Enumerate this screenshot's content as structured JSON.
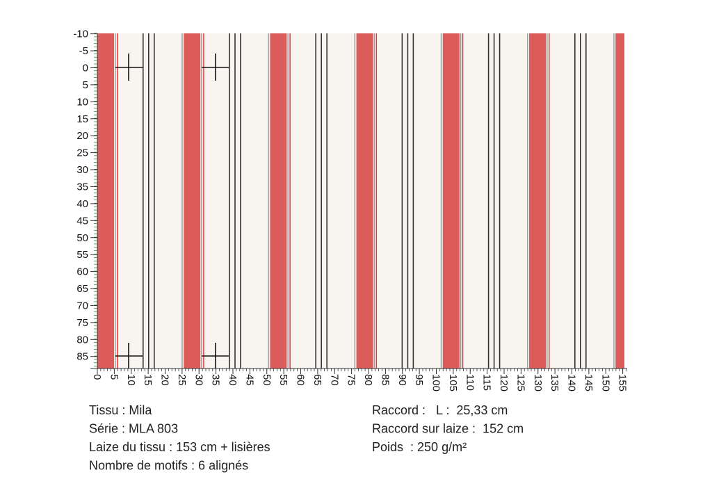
{
  "vertical_ruler": {
    "labels": [
      -10,
      -5,
      0,
      5,
      10,
      15,
      20,
      25,
      30,
      35,
      40,
      45,
      50,
      55,
      60,
      65,
      70,
      75,
      80,
      85
    ]
  },
  "horizontal_ruler": {
    "labels": [
      0,
      5,
      10,
      15,
      20,
      25,
      30,
      35,
      40,
      45,
      50,
      55,
      60,
      65,
      70,
      75,
      80,
      85,
      90,
      95,
      100,
      105,
      110,
      115,
      120,
      125,
      130,
      135,
      140,
      145,
      150,
      155
    ]
  },
  "info_left": [
    "Tissu : Mila",
    "Série : MLA 803",
    "Laize du tissu : 153 cm + lisières",
    "Nombre de motifs : 6 alignés"
  ],
  "info_right": [
    "Raccord :   L :  25,33 cm",
    "Raccord sur laize :  152 cm",
    "Poids  : 250 g/m²"
  ]
}
